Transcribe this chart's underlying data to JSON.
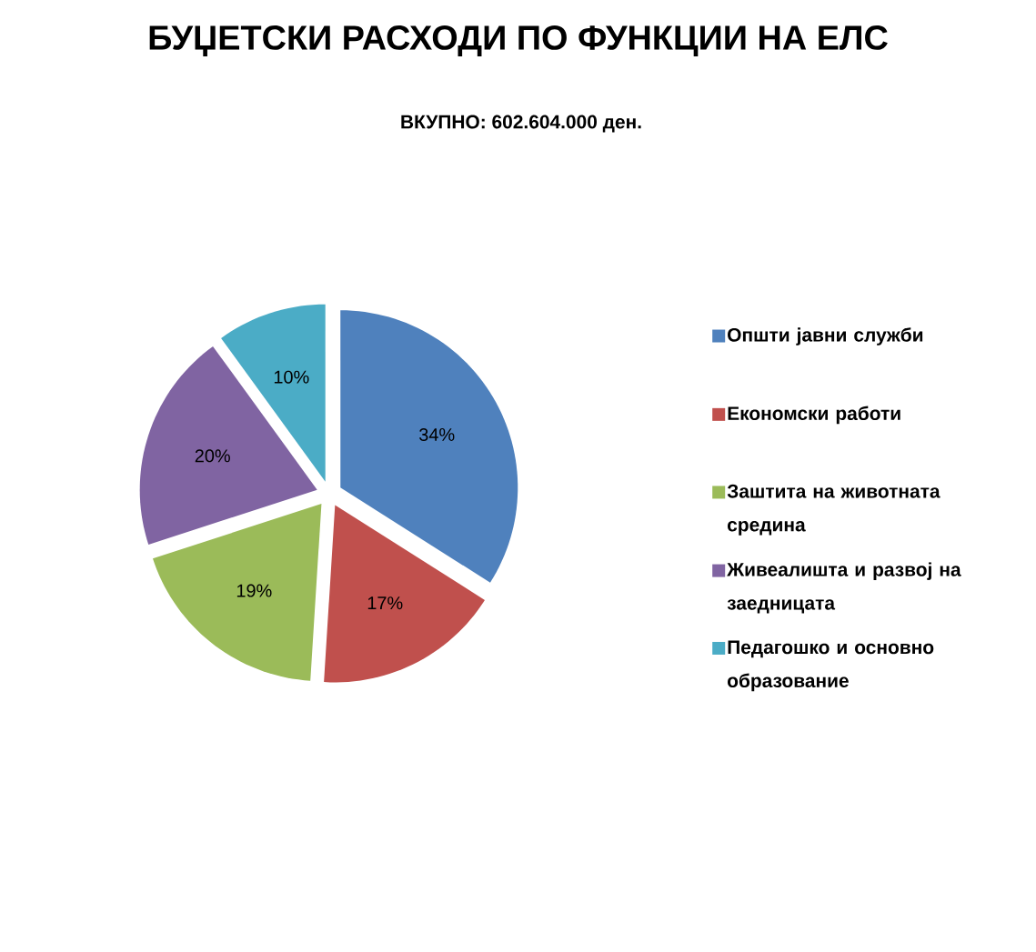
{
  "chart_data": {
    "type": "pie",
    "title": "БУЏЕТСКИ РАСХОДИ ПО ФУНКЦИИ НА ЕЛС",
    "subtitle": "ВКУПНО: 602.604.000 ден.",
    "categories": [
      "Општи јавни служби",
      "Економски работи",
      "Заштита на животната средина",
      "Живеалишта и развој на заедницата",
      "Педагошко и основно образование"
    ],
    "values": [
      34,
      17,
      19,
      20,
      10
    ],
    "colors": [
      "#4f81bd",
      "#c0504d",
      "#9bbb59",
      "#8064a2",
      "#4bacc6"
    ],
    "value_labels": [
      "34%",
      "17%",
      "19%",
      "20%",
      "10%"
    ],
    "legend": "right"
  }
}
